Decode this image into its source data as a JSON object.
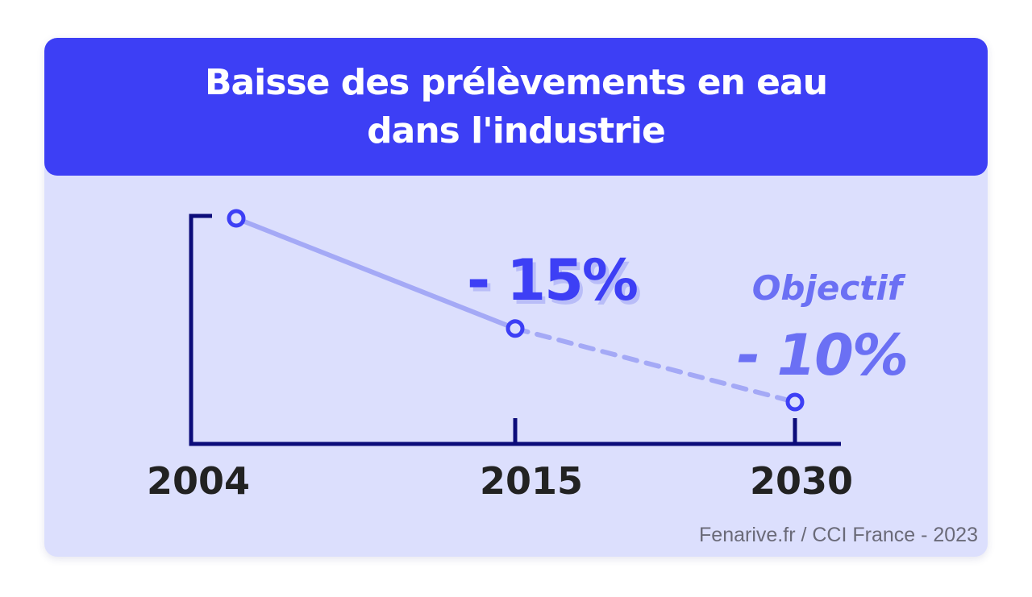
{
  "header": {
    "title": "Baisse des prélèvements en eau\ndans l'industrie"
  },
  "chart_data": {
    "type": "line",
    "title": "Baisse des prélèvements en eau dans l'industrie",
    "categories": [
      "2004",
      "2015",
      "2030"
    ],
    "x": [
      2004,
      2015,
      2030
    ],
    "values": [
      100,
      85,
      75
    ],
    "segments": [
      {
        "from": "2004",
        "to": "2015",
        "style": "solid"
      },
      {
        "from": "2015",
        "to": "2030",
        "style": "dashed",
        "label": "Objectif"
      }
    ],
    "annotations": [
      {
        "at": "2015",
        "text": "- 15%"
      },
      {
        "at": "2030",
        "prefix": "Objectif",
        "text": "- 10%"
      }
    ],
    "colors": {
      "header": "#3d3ff5",
      "background": "#dcdffd",
      "axis": "#0c0c7a",
      "line": "#a4a9f6",
      "points": "#3d3ff5",
      "annotation_2015": "#3d3ff5",
      "annotation_shadow": "#b9bdf8",
      "annotation_objectif": "#6b70f4",
      "year_labels": "#222222"
    }
  },
  "footer": {
    "source": "Fenarive.fr / CCI France - 2023"
  }
}
